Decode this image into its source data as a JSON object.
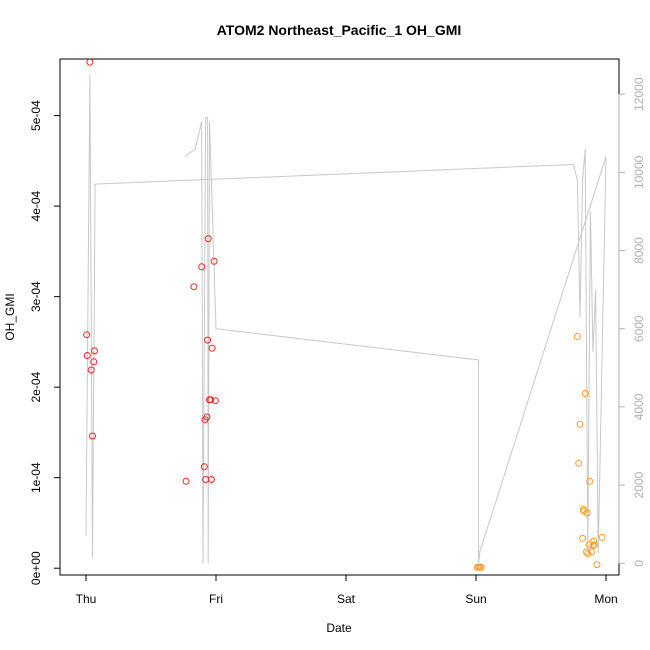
{
  "chart_data": {
    "type": "scatter",
    "title": "ATOM2 Northeast_Pacific_1 OH_GMI",
    "xlabel": "Date",
    "ylabel": "OH_GMI",
    "x_units": "days since Thursday 00:00",
    "xlim": [
      -0.2,
      4.1
    ],
    "ylim": [
      -7.5e-06,
      0.0005625
    ],
    "y2lim": [
      -300,
      12900
    ],
    "x_ticks": [
      {
        "value": 0,
        "label": "Thu"
      },
      {
        "value": 1,
        "label": "Fri"
      },
      {
        "value": 2,
        "label": "Sat"
      },
      {
        "value": 3,
        "label": "Sun"
      },
      {
        "value": 4,
        "label": "Mon"
      }
    ],
    "y_ticks": [
      {
        "value": 0,
        "label": "0e+00"
      },
      {
        "value": 0.0001,
        "label": "1e-04"
      },
      {
        "value": 0.0002,
        "label": "2e-04"
      },
      {
        "value": 0.0003,
        "label": "3e-04"
      },
      {
        "value": 0.0004,
        "label": "4e-04"
      },
      {
        "value": 0.0005,
        "label": "5e-04"
      }
    ],
    "y2_ticks": [
      {
        "value": 0,
        "label": "0"
      },
      {
        "value": 2000,
        "label": "2000"
      },
      {
        "value": 4000,
        "label": "4000"
      },
      {
        "value": 6000,
        "label": "6000"
      },
      {
        "value": 8000,
        "label": "8000"
      },
      {
        "value": 10000,
        "label": "10000"
      },
      {
        "value": 12000,
        "label": "12000"
      }
    ],
    "colors": {
      "red": "#ee2222",
      "orange": "#ff9922",
      "line": "#c8c8c8"
    },
    "series": [
      {
        "name": "",
        "color": "#ee2222",
        "points": [
          [
            0.005,
            0.000258
          ],
          [
            0.01,
            0.000235
          ],
          [
            0.03,
            0.000559
          ],
          [
            0.04,
            0.000219
          ],
          [
            0.05,
            0.000146
          ],
          [
            0.06,
            0.000228
          ],
          [
            0.065,
            0.00024
          ],
          [
            0.77,
            9.6e-05
          ],
          [
            0.83,
            0.000311
          ],
          [
            0.89,
            0.000333
          ],
          [
            0.91,
            0.000112
          ],
          [
            0.915,
            0.000164
          ],
          [
            0.92,
            9.8e-05
          ],
          [
            0.93,
            0.000167
          ],
          [
            0.935,
            0.000252
          ],
          [
            0.94,
            0.000364
          ],
          [
            0.95,
            0.000186
          ],
          [
            0.96,
            0.000186
          ],
          [
            0.965,
            9.8e-05
          ],
          [
            0.97,
            0.000243
          ],
          [
            0.985,
            0.000339
          ],
          [
            0.995,
            0.000185
          ]
        ]
      },
      {
        "name": "",
        "color": "#ff9922",
        "points": [
          [
            3.01,
            1e-06
          ],
          [
            3.02,
            1e-06
          ],
          [
            3.03,
            1e-06
          ],
          [
            3.04,
            1e-06
          ],
          [
            3.78,
            0.000256
          ],
          [
            3.79,
            0.000116
          ],
          [
            3.8,
            0.000159
          ],
          [
            3.82,
            3.3e-05
          ],
          [
            3.825,
            6.5e-05
          ],
          [
            3.83,
            6.3e-05
          ],
          [
            3.84,
            0.000193
          ],
          [
            3.85,
            1.8e-05
          ],
          [
            3.855,
            6.1e-05
          ],
          [
            3.86,
            1.6e-05
          ],
          [
            3.87,
            2.6e-05
          ],
          [
            3.875,
            9.6e-05
          ],
          [
            3.89,
            1.8e-05
          ],
          [
            3.9,
            2.5e-05
          ],
          [
            3.905,
            3e-05
          ],
          [
            3.91,
            2.6e-05
          ],
          [
            3.93,
            4e-06
          ],
          [
            3.97,
            3.4e-05
          ]
        ]
      }
    ],
    "line_series": {
      "name": "",
      "axis": "right",
      "color": "#c8c8c8",
      "points": [
        [
          0.0,
          700
        ],
        [
          0.03,
          12500
        ],
        [
          0.05,
          150
        ],
        [
          0.07,
          9700
        ],
        [
          3.75,
          10200
        ],
        [
          3.78,
          9800
        ],
        [
          3.8,
          6300
        ],
        [
          3.82,
          9800
        ],
        [
          3.84,
          10600
        ],
        [
          3.86,
          300
        ],
        [
          3.88,
          9000
        ],
        [
          3.9,
          5400
        ],
        [
          3.92,
          7000
        ],
        [
          3.94,
          250
        ],
        [
          4.0,
          10400
        ],
        [
          3.03,
          300
        ],
        [
          3.02,
          0
        ],
        [
          3.02,
          5200
        ],
        [
          1.0,
          6000
        ],
        [
          0.95,
          11300
        ],
        [
          0.94,
          0
        ],
        [
          0.935,
          11400
        ],
        [
          0.92,
          11400
        ],
        [
          0.9,
          0
        ],
        [
          0.89,
          11300
        ],
        [
          0.84,
          10600
        ],
        [
          0.76,
          10400
        ]
      ]
    }
  }
}
